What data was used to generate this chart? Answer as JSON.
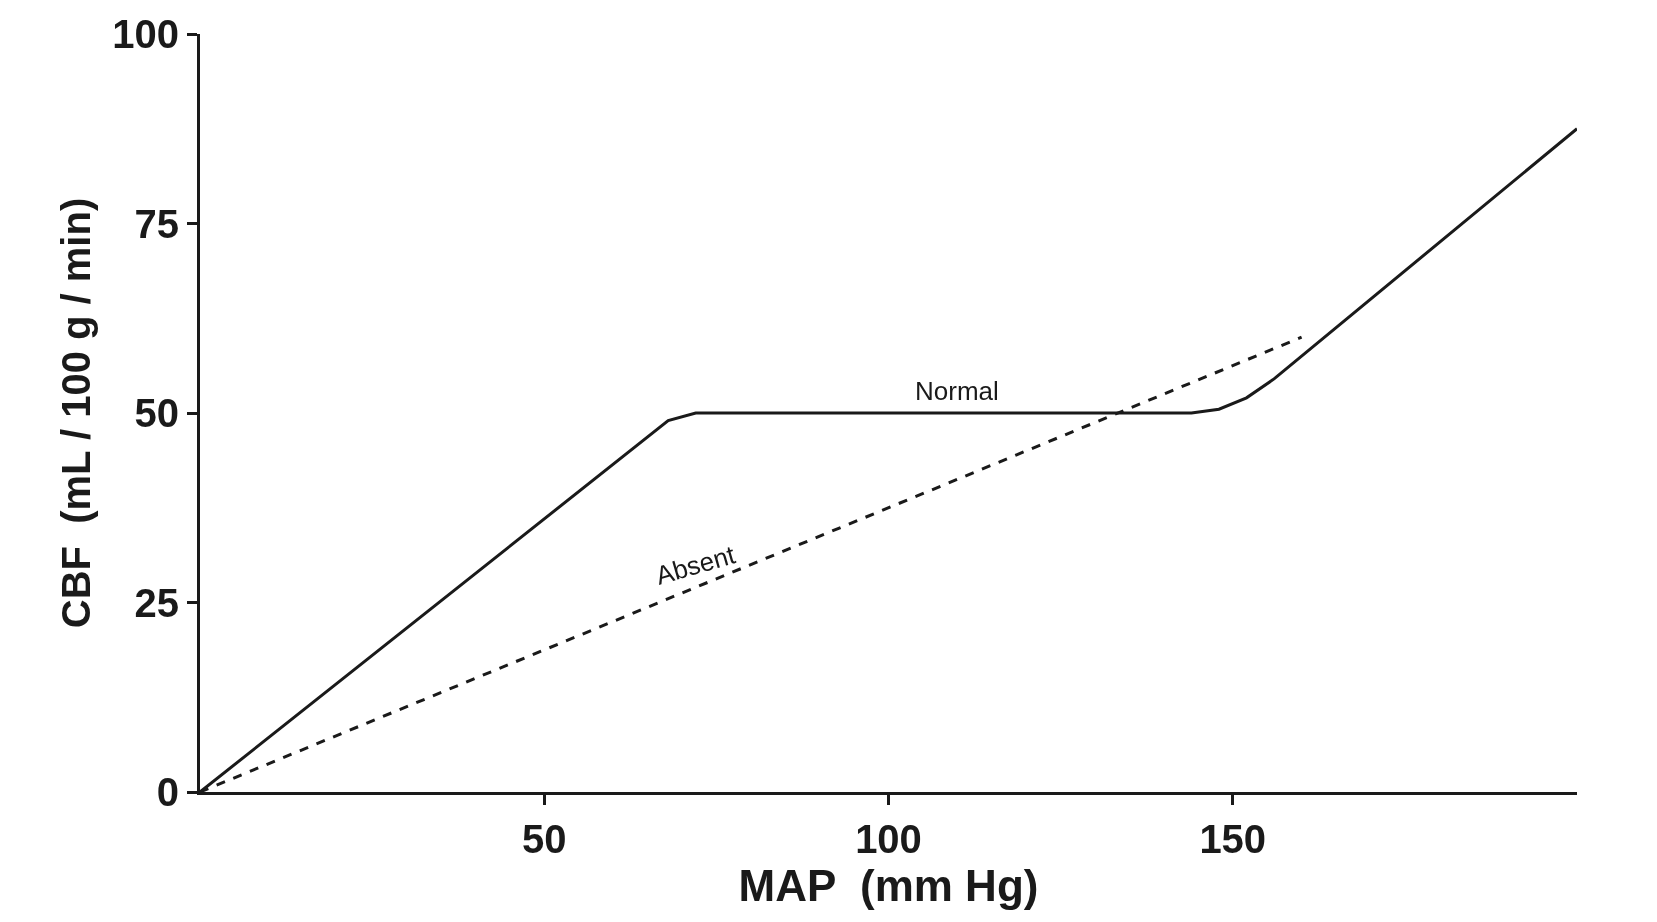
{
  "chart_data": {
    "type": "line",
    "xlabel": "MAP  (mm Hg)",
    "ylabel": "CBF  (mL / 100 g / min)",
    "xlim": [
      0,
      200
    ],
    "xticks": [
      50,
      100,
      150
    ],
    "ylim": [
      0,
      100
    ],
    "yticks": [
      0,
      25,
      50,
      75,
      100
    ],
    "marker": "none",
    "series": [
      {
        "name": "Normal",
        "color": "#1a1a1a",
        "line_style": "solid",
        "x": [
          0,
          68,
          72,
          76,
          144,
          148,
          152,
          156,
          200
        ],
        "values": [
          0,
          49,
          50,
          50,
          50,
          50.5,
          52,
          54.5,
          87.5
        ]
      },
      {
        "name": "Absent",
        "color": "#1a1a1a",
        "line_style": "dashed",
        "x": [
          0,
          160
        ],
        "values": [
          0,
          60
        ]
      }
    ]
  }
}
